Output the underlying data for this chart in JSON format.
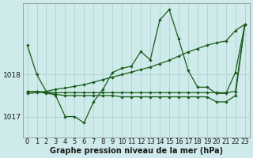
{
  "title": "Graphe pression niveau de la mer (hPa)",
  "background_color": "#ceeaea",
  "grid_color": "#aacece",
  "line_color": "#1a5c1a",
  "ylim": [
    1016.5,
    1019.7
  ],
  "yticks": [
    1017.0,
    1018.0
  ],
  "line_main": [
    1018.7,
    1018.0,
    1017.6,
    1017.5,
    1017.0,
    1017.0,
    1016.85,
    1017.35,
    1017.65,
    1018.05,
    1018.15,
    1018.2,
    1018.55,
    1018.35,
    1019.3,
    1019.55,
    1018.85,
    1018.1,
    1017.7,
    1017.7,
    1017.55,
    1017.55,
    1018.05,
    1019.2
  ],
  "line_trend": [
    1017.55,
    1017.57,
    1017.6,
    1017.65,
    1017.68,
    1017.72,
    1017.76,
    1017.82,
    1017.88,
    1017.94,
    1018.0,
    1018.06,
    1018.12,
    1018.18,
    1018.26,
    1018.34,
    1018.44,
    1018.54,
    1018.62,
    1018.7,
    1018.76,
    1018.8,
    1019.05,
    1019.2
  ],
  "line_flat1": [
    1017.6,
    1017.6,
    1017.58,
    1017.57,
    1017.57,
    1017.57,
    1017.57,
    1017.57,
    1017.57,
    1017.57,
    1017.57,
    1017.57,
    1017.57,
    1017.57,
    1017.57,
    1017.57,
    1017.57,
    1017.57,
    1017.57,
    1017.57,
    1017.57,
    1017.57,
    1017.6,
    1019.2
  ],
  "line_flat2": [
    1017.6,
    1017.6,
    1017.55,
    1017.53,
    1017.5,
    1017.5,
    1017.5,
    1017.5,
    1017.5,
    1017.5,
    1017.47,
    1017.47,
    1017.47,
    1017.47,
    1017.47,
    1017.47,
    1017.47,
    1017.47,
    1017.47,
    1017.47,
    1017.35,
    1017.35,
    1017.5,
    1019.2
  ],
  "figsize": [
    3.2,
    2.0
  ],
  "dpi": 100,
  "xlabel_fontsize": 6,
  "ylabel_fontsize": 6.5,
  "title_fontsize": 7
}
